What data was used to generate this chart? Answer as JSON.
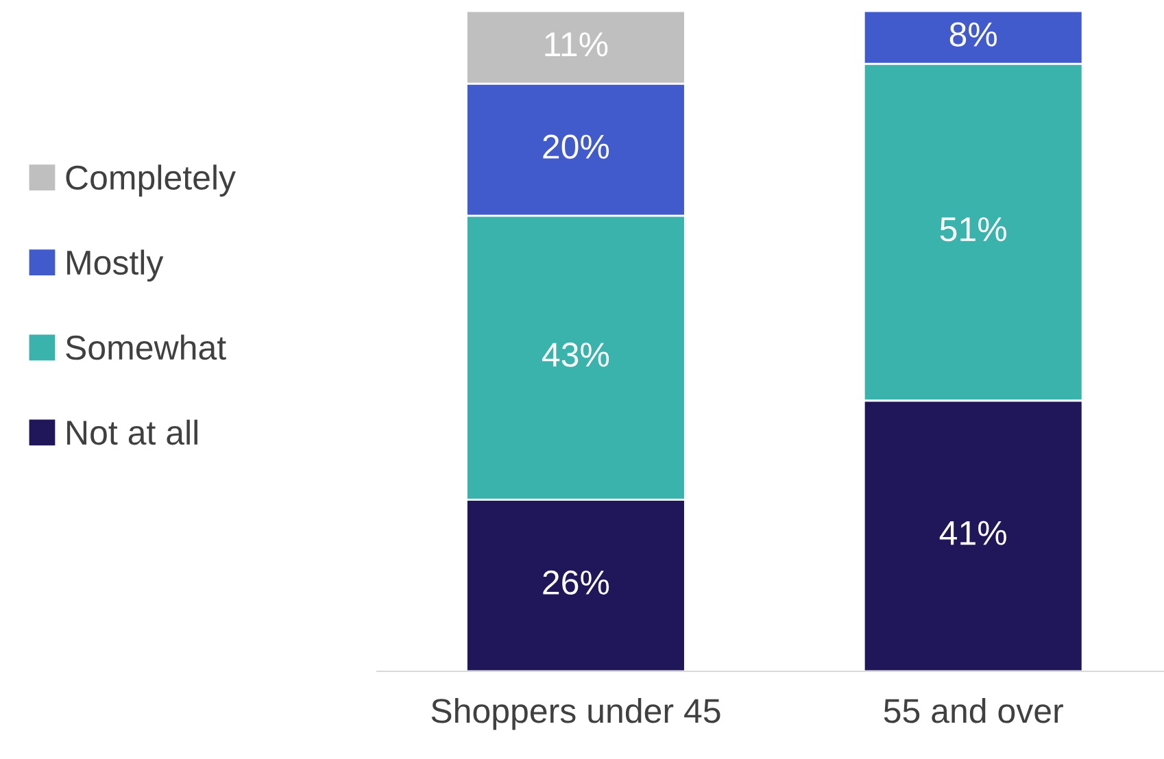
{
  "chart_data": {
    "type": "bar",
    "stacked": true,
    "categories": [
      "Shoppers under 45",
      "55 and over"
    ],
    "legend": "left",
    "tick_labels": "x",
    "series": [
      {
        "name": "Not at all",
        "color": "#20165a",
        "values": [
          26,
          41
        ],
        "value_labels": [
          "26%",
          "41%"
        ]
      },
      {
        "name": "Somewhat",
        "color": "#3bb3ad",
        "values": [
          43,
          51
        ],
        "value_labels": [
          "43%",
          "51%"
        ]
      },
      {
        "name": "Mostly",
        "color": "#425bcc",
        "values": [
          20,
          8
        ],
        "value_labels": [
          "20%",
          "8%"
        ]
      },
      {
        "name": "Completely",
        "color": "#bfbfbf",
        "values": [
          11,
          null
        ],
        "value_labels": [
          "11%",
          null
        ]
      }
    ]
  }
}
